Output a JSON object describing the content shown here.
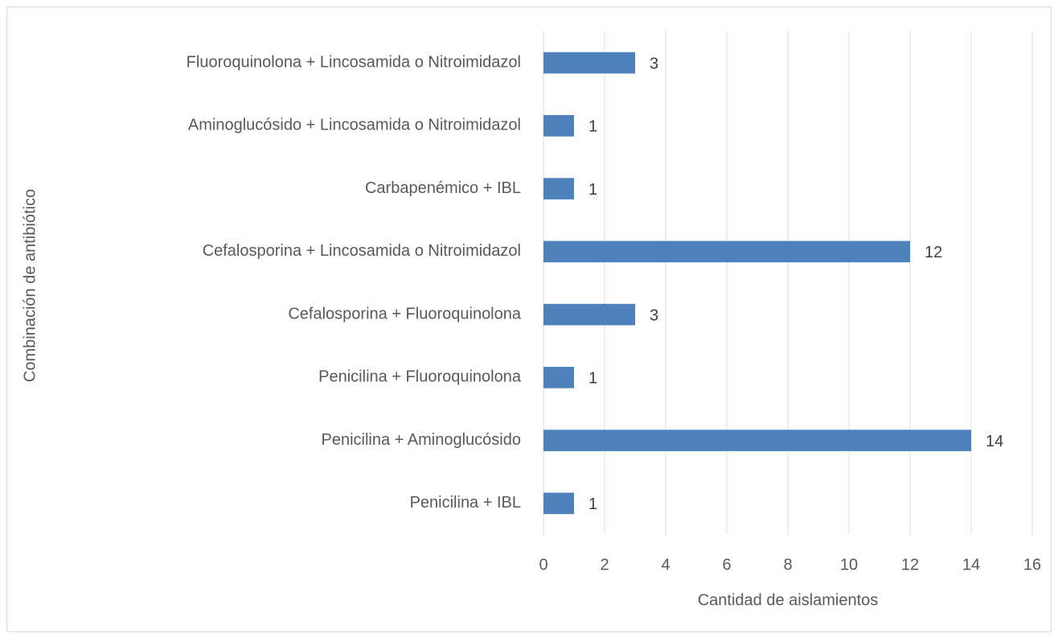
{
  "chart_data": {
    "type": "bar",
    "orientation": "horizontal",
    "x_label": "Cantidad de aislamientos",
    "y_label": "Combinación de antibiótico",
    "categories": [
      "Fluoroquinolona + Lincosamida o Nitroimidazol",
      "Aminoglucósido + Lincosamida o Nitroimidazol",
      "Carbapenémico + IBL",
      "Cefalosporina + Lincosamida o Nitroimidazol",
      "Cefalosporina + Fluoroquinolona",
      "Penicilina + Fluoroquinolona",
      "Penicilina + Aminoglucósido",
      "Penicilina + IBL"
    ],
    "values": [
      3,
      1,
      1,
      12,
      3,
      1,
      14,
      1
    ],
    "color": "#4f81bd",
    "xlim": [
      0,
      16
    ],
    "xticks": [
      0,
      2,
      4,
      6,
      8,
      10,
      12,
      14,
      16
    ],
    "grid": true
  }
}
